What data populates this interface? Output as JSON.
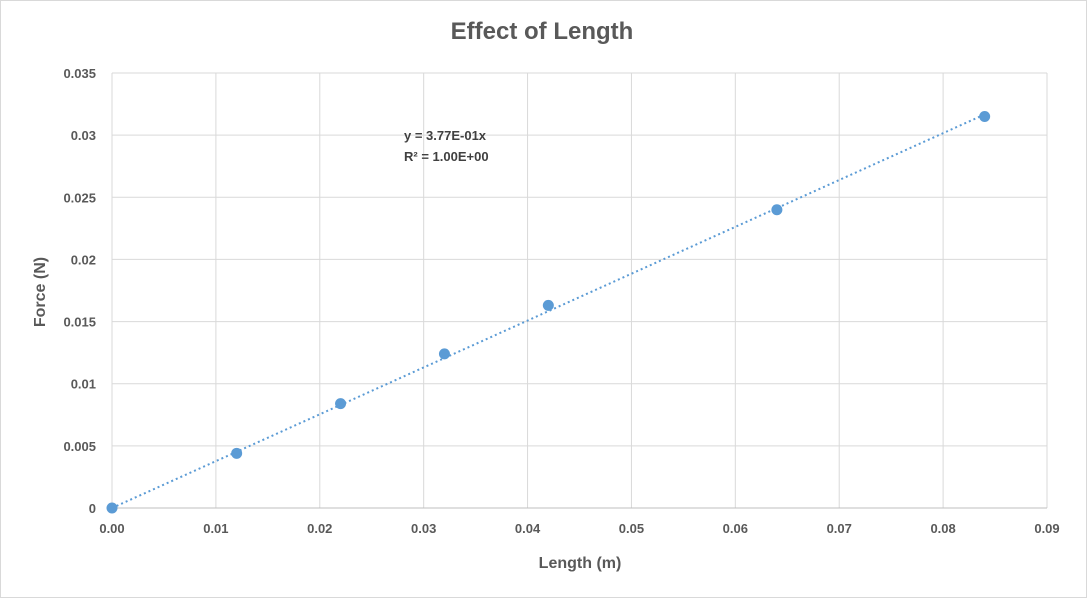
{
  "chart_data": {
    "type": "scatter",
    "title": "Effect of Length",
    "xlabel": "Length (m)",
    "ylabel": "Force (N)",
    "xlim": [
      0,
      0.09
    ],
    "ylim": [
      0,
      0.035
    ],
    "x_ticks": [
      "0.00",
      "0.01",
      "0.02",
      "0.03",
      "0.04",
      "0.05",
      "0.06",
      "0.07",
      "0.08",
      "0.09"
    ],
    "y_ticks": [
      "0",
      "0.005",
      "0.01",
      "0.015",
      "0.02",
      "0.025",
      "0.03",
      "0.035"
    ],
    "grid": true,
    "legend": "none",
    "series": [
      {
        "color": "#5b9bd5",
        "points": [
          {
            "x": 0.0,
            "y": 0.0
          },
          {
            "x": 0.012,
            "y": 0.0044
          },
          {
            "x": 0.022,
            "y": 0.0084
          },
          {
            "x": 0.032,
            "y": 0.0124
          },
          {
            "x": 0.042,
            "y": 0.0163
          },
          {
            "x": 0.064,
            "y": 0.024
          },
          {
            "x": 0.084,
            "y": 0.0315
          }
        ]
      }
    ],
    "trendline": {
      "type": "linear",
      "slope": 0.377,
      "intercept": 0,
      "style": "dotted",
      "color": "#5b9bd5",
      "equation": "y = 3.77E-01x",
      "r_squared": "R² = 1.00E+00"
    }
  }
}
